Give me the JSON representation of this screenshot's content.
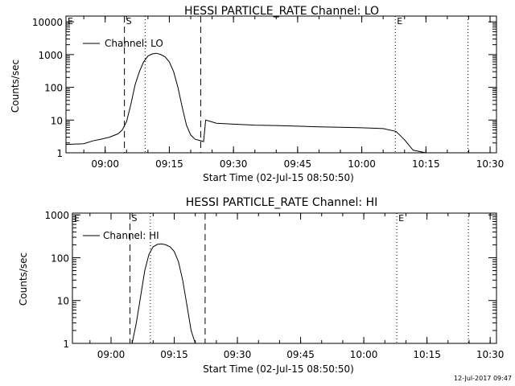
{
  "footer_timestamp": "12-Jul-2017 09:47",
  "chart_data": [
    {
      "type": "line",
      "title": "HESSI PARTICLE_RATE Channel: LO",
      "xlabel": "Start Time (02-Jul-15 08:50:50)",
      "ylabel": "Counts/sec",
      "y_scale": "log",
      "ylim": [
        1,
        15000
      ],
      "xlim": [
        "08:50:50",
        "10:31:30"
      ],
      "x_ticks": [
        "09:00",
        "09:15",
        "09:30",
        "09:45",
        "10:00",
        "10:15",
        "10:30"
      ],
      "y_ticks": [
        "1",
        "10",
        "100",
        "1000",
        "10000"
      ],
      "legend": {
        "label": "Channel: LO",
        "placement": "top-left"
      },
      "markers": [
        {
          "time": "08:50:50",
          "label": "E",
          "style": "dotted"
        },
        {
          "time": "09:04:30",
          "label": "S",
          "style": "dashed"
        },
        {
          "time": "09:09:20",
          "label": "",
          "style": "dotted"
        },
        {
          "time": "09:22:20",
          "label": "",
          "style": "dashed"
        },
        {
          "time": "10:07:50",
          "label": "E",
          "style": "dotted"
        },
        {
          "time": "10:24:50",
          "label": "",
          "style": "dotted"
        }
      ],
      "series": [
        {
          "name": "Channel: LO",
          "x": [
            "08:50:50",
            "08:55:00",
            "08:57:00",
            "08:59:00",
            "09:01:00",
            "09:03:00",
            "09:04:00",
            "09:05:00",
            "09:06:00",
            "09:07:00",
            "09:08:00",
            "09:09:00",
            "09:10:00",
            "09:11:00",
            "09:12:00",
            "09:13:00",
            "09:14:00",
            "09:15:00",
            "09:16:00",
            "09:17:00",
            "09:18:00",
            "09:19:00",
            "09:20:00",
            "09:21:00",
            "09:22:00",
            "09:23:00",
            "09:23:30",
            "09:26:00",
            "09:30:00",
            "09:35:00",
            "09:40:00",
            "09:45:00",
            "09:50:00",
            "09:55:00",
            "10:00:00",
            "10:05:00",
            "10:08:00",
            "10:10:00",
            "10:12:00",
            "10:15:00",
            "10:20:00",
            "10:25:00"
          ],
          "y": [
            1.8,
            1.9,
            2.3,
            2.6,
            3.0,
            3.8,
            5,
            9,
            30,
            120,
            300,
            600,
            900,
            1050,
            1100,
            1000,
            850,
            600,
            300,
            100,
            25,
            7,
            3.5,
            2.6,
            2.4,
            2.2,
            10,
            8,
            7.5,
            7,
            6.8,
            6.5,
            6.2,
            6,
            5.8,
            5.5,
            4.5,
            2.5,
            1.2,
            1,
            1,
            1
          ]
        }
      ]
    },
    {
      "type": "line",
      "title": "HESSI PARTICLE_RATE Channel: HI",
      "xlabel": "Start Time (02-Jul-15 08:50:50)",
      "ylabel": "Counts/sec",
      "y_scale": "log",
      "ylim": [
        1,
        1100
      ],
      "xlim": [
        "08:50:50",
        "10:31:30"
      ],
      "x_ticks": [
        "09:00",
        "09:15",
        "09:30",
        "09:45",
        "10:00",
        "10:15",
        "10:30"
      ],
      "y_ticks": [
        "1",
        "10",
        "100",
        "1000"
      ],
      "legend": {
        "label": "Channel: HI",
        "placement": "top-left"
      },
      "markers": [
        {
          "time": "08:50:50",
          "label": "E",
          "style": "dotted"
        },
        {
          "time": "09:04:30",
          "label": "S",
          "style": "dashed"
        },
        {
          "time": "09:09:20",
          "label": "",
          "style": "dotted"
        },
        {
          "time": "09:22:20",
          "label": "",
          "style": "dashed"
        },
        {
          "time": "10:07:50",
          "label": "E",
          "style": "dotted"
        },
        {
          "time": "10:24:50",
          "label": "",
          "style": "dotted"
        }
      ],
      "series": [
        {
          "name": "Channel: HI",
          "x": [
            "09:05:00",
            "09:06:00",
            "09:07:00",
            "09:08:00",
            "09:09:00",
            "09:10:00",
            "09:11:00",
            "09:12:00",
            "09:13:00",
            "09:14:00",
            "09:15:00",
            "09:16:00",
            "09:17:00",
            "09:18:00",
            "09:19:00",
            "09:20:00"
          ],
          "y": [
            1,
            3,
            12,
            50,
            120,
            180,
            205,
            210,
            200,
            180,
            140,
            80,
            30,
            8,
            2,
            1
          ]
        }
      ]
    }
  ]
}
